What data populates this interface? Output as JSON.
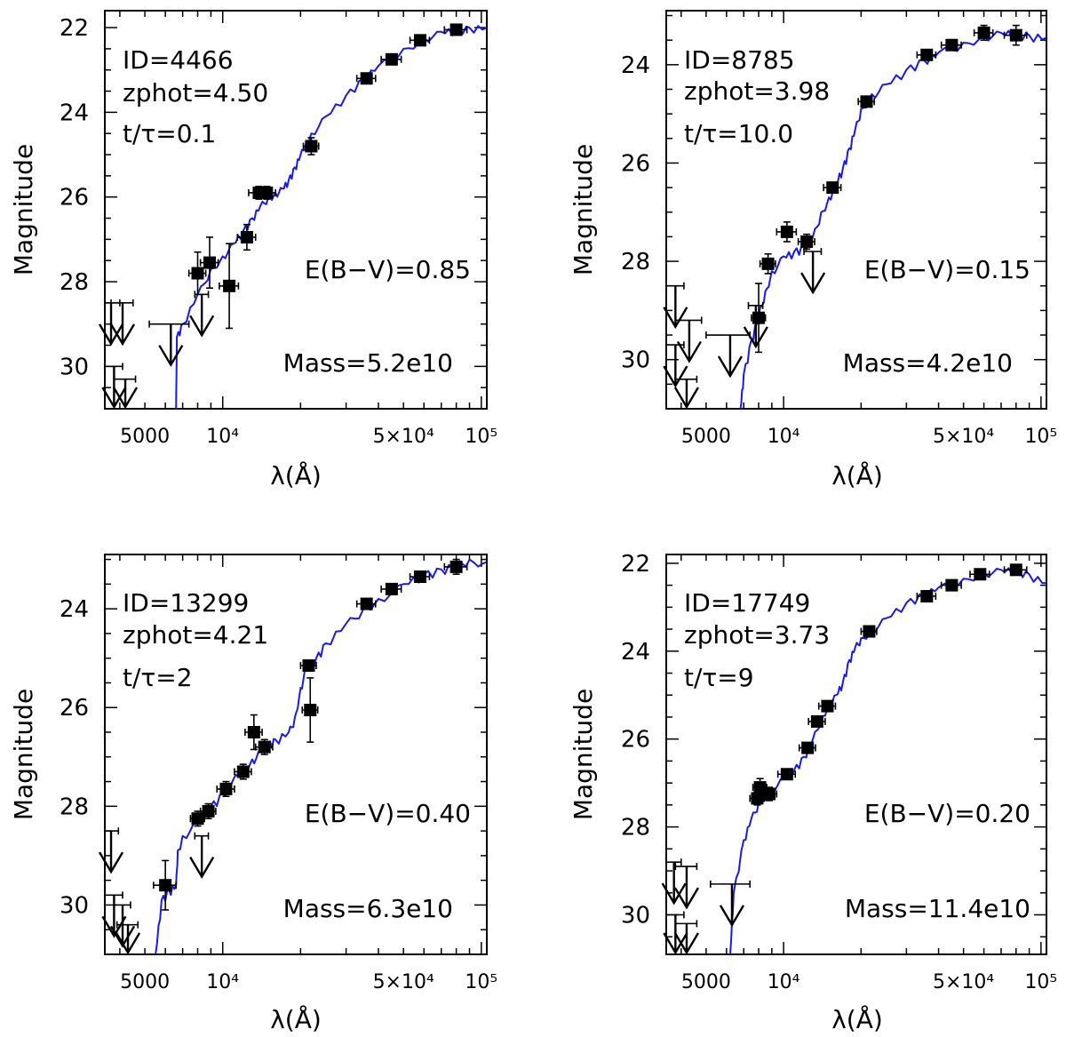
{
  "chart_data": [
    {
      "type": "scatter",
      "ylabel": "Magnitude",
      "xlabel": "λ(Å)",
      "xscale": "log",
      "xlim": [
        3500,
        105000
      ],
      "ylim": [
        31,
        21.6
      ],
      "yticks": [
        22,
        24,
        26,
        28,
        30
      ],
      "ytick_labels": [
        "22",
        "24",
        "26",
        "28",
        "30"
      ],
      "xtick_labels": [
        {
          "value": 5000,
          "label": "5000"
        },
        {
          "value": 10000,
          "label": "10⁴"
        },
        {
          "value": 50000,
          "label": "5×10⁴"
        },
        {
          "value": 100000,
          "label": "10⁵"
        }
      ],
      "annotations": {
        "id": "ID=4466",
        "zphot": "zphot=4.50",
        "age": "t/τ=0.1",
        "ebv": "E(B−V)=0.85",
        "mass": "Mass=5.2e10"
      },
      "points": [
        {
          "x": 8000,
          "y": 27.8,
          "xerr": 600,
          "yerr": 0.5
        },
        {
          "x": 8900,
          "y": 27.55,
          "xerr": 700,
          "yerr": 0.6
        },
        {
          "x": 10600,
          "y": 28.1,
          "xerr": 900,
          "yerr": 1.0
        },
        {
          "x": 12400,
          "y": 26.95,
          "xerr": 1000,
          "yerr": 0.3
        },
        {
          "x": 13800,
          "y": 25.9,
          "xerr": 1200,
          "yerr": 0.15
        },
        {
          "x": 14800,
          "y": 25.9,
          "xerr": 1200,
          "yerr": 0.15
        },
        {
          "x": 22000,
          "y": 24.8,
          "xerr": 1500,
          "yerr": 0.2
        },
        {
          "x": 36000,
          "y": 23.2,
          "xerr": 3000,
          "yerr": 0.1
        },
        {
          "x": 45000,
          "y": 22.75,
          "xerr": 4000,
          "yerr": 0.1
        },
        {
          "x": 58000,
          "y": 22.3,
          "xerr": 5000,
          "yerr": 0.1
        },
        {
          "x": 80000,
          "y": 22.05,
          "xerr": 8000,
          "yerr": 0.1
        }
      ],
      "upper_limits": [
        {
          "x": 3700,
          "y": 28.5,
          "xerr": 300
        },
        {
          "x": 4100,
          "y": 28.5,
          "xerr": 400
        },
        {
          "x": 6300,
          "y": 29.0,
          "xerr": 1100
        },
        {
          "x": 8300,
          "y": 28.3,
          "xerr": 500
        },
        {
          "x": 3800,
          "y": 30.0,
          "xerr": 300
        },
        {
          "x": 4200,
          "y": 30.3,
          "xerr": 400
        }
      ],
      "model": [
        [
          6600,
          31.0
        ],
        [
          6650,
          29.3
        ],
        [
          7000,
          29.0
        ],
        [
          8000,
          28.3
        ],
        [
          9000,
          27.7
        ],
        [
          10000,
          27.4
        ],
        [
          11000,
          27.1
        ],
        [
          12000,
          26.8
        ],
        [
          13000,
          26.5
        ],
        [
          14000,
          26.2
        ],
        [
          15000,
          26.0
        ],
        [
          16000,
          25.9
        ],
        [
          17000,
          25.8
        ],
        [
          18000,
          25.6
        ],
        [
          19000,
          25.3
        ],
        [
          20000,
          25.0
        ],
        [
          21000,
          24.7
        ],
        [
          22000,
          24.5
        ],
        [
          25000,
          24.1
        ],
        [
          30000,
          23.6
        ],
        [
          35000,
          23.2
        ],
        [
          40000,
          22.9
        ],
        [
          50000,
          22.5
        ],
        [
          60000,
          22.25
        ],
        [
          70000,
          22.1
        ],
        [
          80000,
          22.05
        ],
        [
          90000,
          22.0
        ],
        [
          105000,
          22.0
        ]
      ]
    },
    {
      "type": "scatter",
      "ylabel": "Magnitude",
      "xlabel": "λ(Å)",
      "xscale": "log",
      "xlim": [
        3500,
        105000
      ],
      "ylim": [
        31,
        22.9
      ],
      "yticks": [
        24,
        26,
        28,
        30
      ],
      "ytick_labels": [
        "24",
        "26",
        "28",
        "30"
      ],
      "xtick_labels": [
        {
          "value": 5000,
          "label": "5000"
        },
        {
          "value": 10000,
          "label": "10⁴"
        },
        {
          "value": 50000,
          "label": "5×10⁴"
        },
        {
          "value": 100000,
          "label": "10⁵"
        }
      ],
      "annotations": {
        "id": "ID=8785",
        "zphot": "zphot=3.98",
        "age": "t/τ=10.0",
        "ebv": "E(B−V)=0.15",
        "mass": "Mass=4.2e10"
      },
      "points": [
        {
          "x": 8000,
          "y": 29.15,
          "xerr": 500,
          "yerr": 0.7
        },
        {
          "x": 8700,
          "y": 28.05,
          "xerr": 600,
          "yerr": 0.2
        },
        {
          "x": 10300,
          "y": 27.4,
          "xerr": 900,
          "yerr": 0.2
        },
        {
          "x": 12300,
          "y": 27.6,
          "xerr": 900,
          "yerr": 0.15
        },
        {
          "x": 15500,
          "y": 26.5,
          "xerr": 1200,
          "yerr": 0.1
        },
        {
          "x": 21000,
          "y": 24.75,
          "xerr": 1500,
          "yerr": 0.1
        },
        {
          "x": 36000,
          "y": 23.8,
          "xerr": 3000,
          "yerr": 0.1
        },
        {
          "x": 45000,
          "y": 23.6,
          "xerr": 4000,
          "yerr": 0.1
        },
        {
          "x": 60000,
          "y": 23.35,
          "xerr": 5000,
          "yerr": 0.15
        },
        {
          "x": 80000,
          "y": 23.4,
          "xerr": 8000,
          "yerr": 0.2
        }
      ],
      "upper_limits": [
        {
          "x": 3800,
          "y": 28.5,
          "xerr": 300
        },
        {
          "x": 4300,
          "y": 29.2,
          "xerr": 500
        },
        {
          "x": 6200,
          "y": 29.5,
          "xerr": 1200
        },
        {
          "x": 7800,
          "y": 28.9,
          "xerr": 500
        },
        {
          "x": 13000,
          "y": 27.8,
          "xerr": 1000
        },
        {
          "x": 3800,
          "y": 29.7,
          "xerr": 300
        },
        {
          "x": 4200,
          "y": 30.4,
          "xerr": 400
        }
      ],
      "model": [
        [
          6800,
          31.0
        ],
        [
          7000,
          30.3
        ],
        [
          7500,
          29.6
        ],
        [
          8000,
          29.1
        ],
        [
          8500,
          28.6
        ],
        [
          9000,
          28.2
        ],
        [
          10000,
          27.9
        ],
        [
          11000,
          27.8
        ],
        [
          12000,
          27.7
        ],
        [
          13000,
          27.5
        ],
        [
          14000,
          27.0
        ],
        [
          15000,
          26.7
        ],
        [
          16000,
          26.4
        ],
        [
          17000,
          26.1
        ],
        [
          18000,
          25.7
        ],
        [
          19000,
          25.3
        ],
        [
          20000,
          24.9
        ],
        [
          22000,
          24.6
        ],
        [
          25000,
          24.4
        ],
        [
          30000,
          24.1
        ],
        [
          35000,
          23.9
        ],
        [
          40000,
          23.75
        ],
        [
          50000,
          23.55
        ],
        [
          60000,
          23.4
        ],
        [
          70000,
          23.35
        ],
        [
          80000,
          23.35
        ],
        [
          90000,
          23.4
        ],
        [
          105000,
          23.45
        ]
      ]
    },
    {
      "type": "scatter",
      "ylabel": "Magnitude",
      "xlabel": "λ(Å)",
      "xscale": "log",
      "xlim": [
        3500,
        105000
      ],
      "ylim": [
        31,
        22.9
      ],
      "yticks": [
        24,
        26,
        28,
        30
      ],
      "ytick_labels": [
        "24",
        "26",
        "28",
        "30"
      ],
      "xtick_labels": [
        {
          "value": 5000,
          "label": "5000"
        },
        {
          "value": 10000,
          "label": "10⁴"
        },
        {
          "value": 50000,
          "label": "5×10⁴"
        },
        {
          "value": 100000,
          "label": "10⁵"
        }
      ],
      "annotations": {
        "id": "ID=13299",
        "zphot": "zphot=4.21",
        "age": "t/τ=2",
        "ebv": "E(B−V)=0.40",
        "mass": "Mass=6.3e10"
      },
      "points": [
        {
          "x": 6000,
          "y": 29.6,
          "xerr": 600,
          "yerr": 0.5
        },
        {
          "x": 8000,
          "y": 28.25,
          "xerr": 500,
          "yerr": 0.15
        },
        {
          "x": 8800,
          "y": 28.1,
          "xerr": 600,
          "yerr": 0.15
        },
        {
          "x": 10300,
          "y": 27.65,
          "xerr": 800,
          "yerr": 0.15
        },
        {
          "x": 12000,
          "y": 27.3,
          "xerr": 900,
          "yerr": 0.15
        },
        {
          "x": 13200,
          "y": 26.5,
          "xerr": 1000,
          "yerr": 0.35
        },
        {
          "x": 14500,
          "y": 26.8,
          "xerr": 1100,
          "yerr": 0.15
        },
        {
          "x": 21500,
          "y": 25.15,
          "xerr": 1500,
          "yerr": 0.1
        },
        {
          "x": 21800,
          "y": 26.05,
          "xerr": 1500,
          "yerr": 0.65
        },
        {
          "x": 36000,
          "y": 23.9,
          "xerr": 3000,
          "yerr": 0.1
        },
        {
          "x": 45000,
          "y": 23.6,
          "xerr": 4000,
          "yerr": 0.1
        },
        {
          "x": 58000,
          "y": 23.35,
          "xerr": 5000,
          "yerr": 0.1
        },
        {
          "x": 80000,
          "y": 23.15,
          "xerr": 8000,
          "yerr": 0.15
        }
      ],
      "upper_limits": [
        {
          "x": 3700,
          "y": 28.5,
          "xerr": 250
        },
        {
          "x": 8300,
          "y": 28.6,
          "xerr": 500
        },
        {
          "x": 3800,
          "y": 29.8,
          "xerr": 300
        },
        {
          "x": 4100,
          "y": 30.0,
          "xerr": 300
        },
        {
          "x": 4300,
          "y": 30.4,
          "xerr": 400
        }
      ],
      "model": [
        [
          5500,
          31.0
        ],
        [
          5800,
          29.9
        ],
        [
          6200,
          29.7
        ],
        [
          6600,
          29.6
        ],
        [
          6700,
          28.9
        ],
        [
          7000,
          28.6
        ],
        [
          8000,
          28.3
        ],
        [
          9000,
          28.0
        ],
        [
          10000,
          27.75
        ],
        [
          11000,
          27.45
        ],
        [
          12000,
          27.25
        ],
        [
          13000,
          27.05
        ],
        [
          14000,
          26.9
        ],
        [
          15000,
          26.75
        ],
        [
          16000,
          26.65
        ],
        [
          18000,
          26.5
        ],
        [
          19000,
          26.2
        ],
        [
          20000,
          25.6
        ],
        [
          21000,
          25.2
        ],
        [
          23000,
          25.0
        ],
        [
          25000,
          24.7
        ],
        [
          30000,
          24.3
        ],
        [
          35000,
          24.0
        ],
        [
          40000,
          23.8
        ],
        [
          50000,
          23.5
        ],
        [
          60000,
          23.3
        ],
        [
          70000,
          23.2
        ],
        [
          80000,
          23.1
        ],
        [
          90000,
          23.0
        ],
        [
          105000,
          23.05
        ]
      ]
    },
    {
      "type": "scatter",
      "ylabel": "Magnitude",
      "xlabel": "λ(Å)",
      "xscale": "log",
      "xlim": [
        3500,
        105000
      ],
      "ylim": [
        30.9,
        21.8
      ],
      "yticks": [
        22,
        24,
        26,
        28,
        30
      ],
      "ytick_labels": [
        "22",
        "24",
        "26",
        "28",
        "30"
      ],
      "xtick_labels": [
        {
          "value": 5000,
          "label": "5000"
        },
        {
          "value": 10000,
          "label": "10⁴"
        },
        {
          "value": 50000,
          "label": "5×10⁴"
        },
        {
          "value": 100000,
          "label": "10⁵"
        }
      ],
      "annotations": {
        "id": "ID=17749",
        "zphot": "zphot=3.73",
        "age": "t/τ=9",
        "ebv": "E(B−V)=0.20",
        "mass": "Mass=11.4e10"
      },
      "points": [
        {
          "x": 7900,
          "y": 27.35,
          "xerr": 500,
          "yerr": 0.15
        },
        {
          "x": 8100,
          "y": 27.1,
          "xerr": 500,
          "yerr": 0.2
        },
        {
          "x": 8800,
          "y": 27.25,
          "xerr": 600,
          "yerr": 0.15
        },
        {
          "x": 10300,
          "y": 26.8,
          "xerr": 800,
          "yerr": 0.1
        },
        {
          "x": 12400,
          "y": 26.2,
          "xerr": 900,
          "yerr": 0.1
        },
        {
          "x": 13500,
          "y": 25.6,
          "xerr": 1000,
          "yerr": 0.1
        },
        {
          "x": 14800,
          "y": 25.25,
          "xerr": 1100,
          "yerr": 0.1
        },
        {
          "x": 21500,
          "y": 23.55,
          "xerr": 1500,
          "yerr": 0.1
        },
        {
          "x": 36000,
          "y": 22.75,
          "xerr": 3000,
          "yerr": 0.05
        },
        {
          "x": 45000,
          "y": 22.5,
          "xerr": 4000,
          "yerr": 0.05
        },
        {
          "x": 58000,
          "y": 22.25,
          "xerr": 5000,
          "yerr": 0.05
        },
        {
          "x": 80000,
          "y": 22.15,
          "xerr": 8000,
          "yerr": 0.1
        }
      ],
      "upper_limits": [
        {
          "x": 3750,
          "y": 28.8,
          "xerr": 250
        },
        {
          "x": 4200,
          "y": 28.9,
          "xerr": 400
        },
        {
          "x": 6300,
          "y": 29.3,
          "xerr": 1100
        },
        {
          "x": 3800,
          "y": 30.0,
          "xerr": 300
        },
        {
          "x": 4200,
          "y": 30.2,
          "xerr": 400
        }
      ],
      "model": [
        [
          6200,
          30.9
        ],
        [
          6400,
          29.5
        ],
        [
          7000,
          28.3
        ],
        [
          7500,
          27.8
        ],
        [
          8000,
          27.45
        ],
        [
          9000,
          27.1
        ],
        [
          10000,
          26.9
        ],
        [
          11000,
          26.7
        ],
        [
          12000,
          26.4
        ],
        [
          13000,
          26.0
        ],
        [
          14000,
          25.5
        ],
        [
          15000,
          25.2
        ],
        [
          16000,
          25.0
        ],
        [
          17000,
          24.7
        ],
        [
          18000,
          24.2
        ],
        [
          19000,
          23.9
        ],
        [
          20000,
          23.7
        ],
        [
          22000,
          23.5
        ],
        [
          25000,
          23.25
        ],
        [
          30000,
          22.9
        ],
        [
          35000,
          22.7
        ],
        [
          40000,
          22.55
        ],
        [
          50000,
          22.35
        ],
        [
          60000,
          22.2
        ],
        [
          70000,
          22.15
        ],
        [
          80000,
          22.15
        ],
        [
          90000,
          22.25
        ],
        [
          105000,
          22.45
        ]
      ]
    }
  ]
}
